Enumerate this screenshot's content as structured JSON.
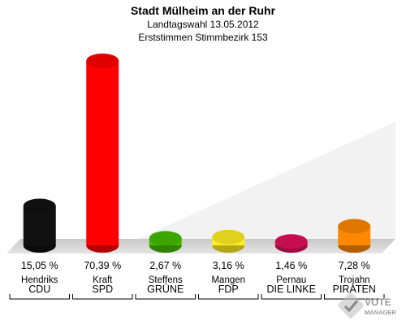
{
  "header": {
    "title": "Stadt Mülheim an der Ruhr",
    "subtitle1": "Landtagswahl 13.05.2012",
    "subtitle2": "Erststimmen Stimmbezirk 153"
  },
  "logo": {
    "line1": "VOTE",
    "line2": "MANAGER"
  },
  "chart_data": {
    "type": "bar",
    "categories": [
      "CDU",
      "SPD",
      "GRÜNE",
      "FDP",
      "DIE LINKE",
      "PIRATEN"
    ],
    "candidates": [
      "Hendriks",
      "Kraft",
      "Steffens",
      "Mangen",
      "Pernau",
      "Trojahn"
    ],
    "values": [
      15.05,
      70.39,
      2.67,
      3.16,
      1.46,
      7.28
    ],
    "labels": [
      "15,05 %",
      "70,39 %",
      "2,67 %",
      "3,16 %",
      "1,46 %",
      "7,28 %"
    ],
    "colors": [
      "#111111",
      "#ff0000",
      "#44bb00",
      "#ffee22",
      "#e0105a",
      "#ff8800"
    ],
    "ylim": [
      0,
      75
    ]
  }
}
